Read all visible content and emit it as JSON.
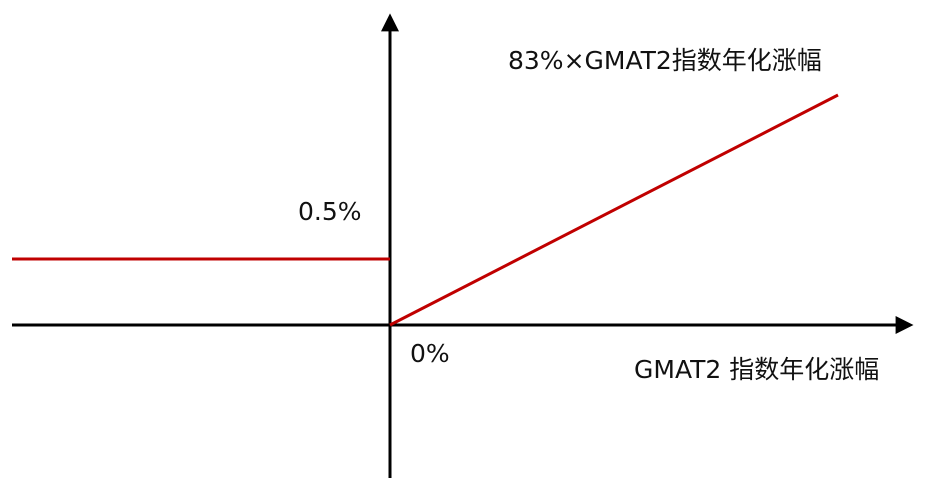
{
  "labels": {
    "slope": "83%×GMAT2指数年化涨幅",
    "floor": "0.5%",
    "origin": "0%",
    "x_axis": "GMAT2 指数年化涨幅"
  }
}
